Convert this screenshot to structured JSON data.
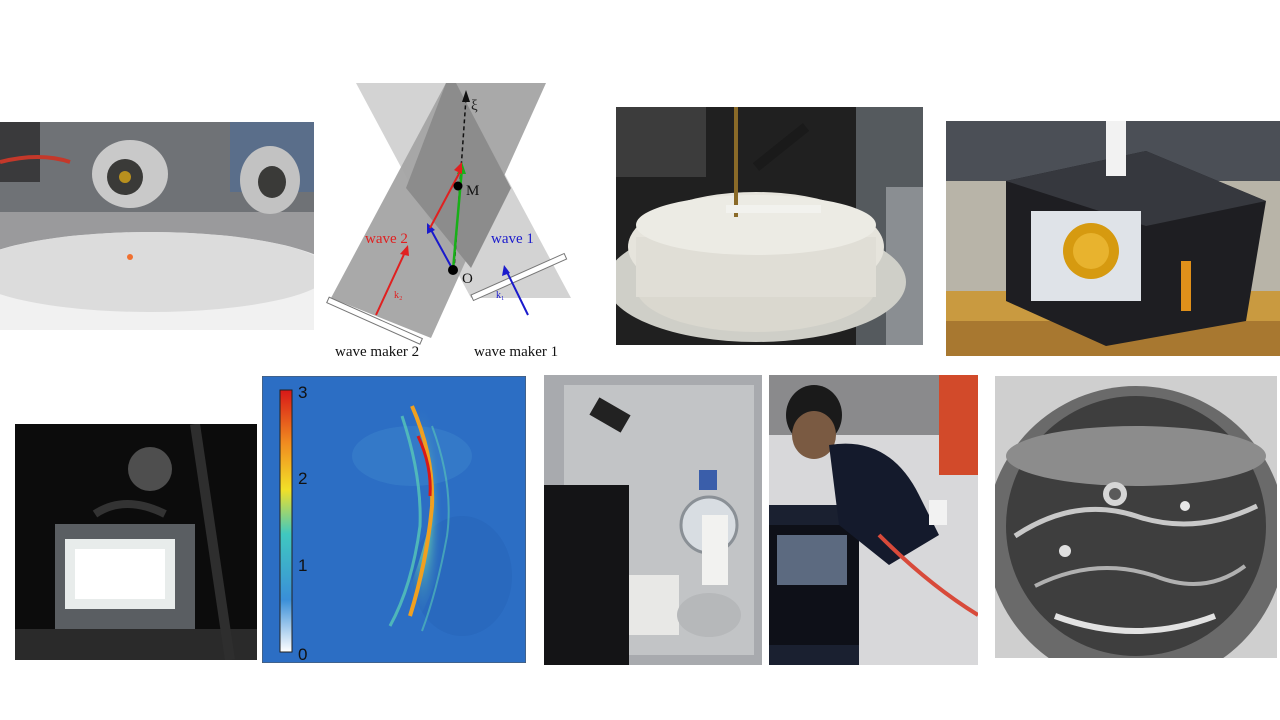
{
  "diagram": {
    "axis_label": "ξ",
    "point_m": "M",
    "point_o": "O",
    "wave2_label": "wave 2",
    "wave1_label": "wave 1",
    "k2_label": "k₂",
    "k1_label": "k₁",
    "maker2_label": "wave maker 2",
    "maker1_label": "wave maker 1",
    "colors": {
      "wave2": "#e02020",
      "wave1": "#1a1acc",
      "resultant": "#18b018"
    }
  },
  "heatmap": {
    "colorbar_ticks": [
      "3",
      "2",
      "1",
      "0"
    ]
  },
  "photos": [
    "tank-with-two-wave-makers-photo",
    "foam-filled-circular-tank-photo",
    "flight-experiment-rack-photo",
    "illuminated-cell-photo",
    "experiment-rack-interior-photo",
    "operators-in-flight-suits-photo",
    "liquid-sphere-grayscale-photo"
  ]
}
